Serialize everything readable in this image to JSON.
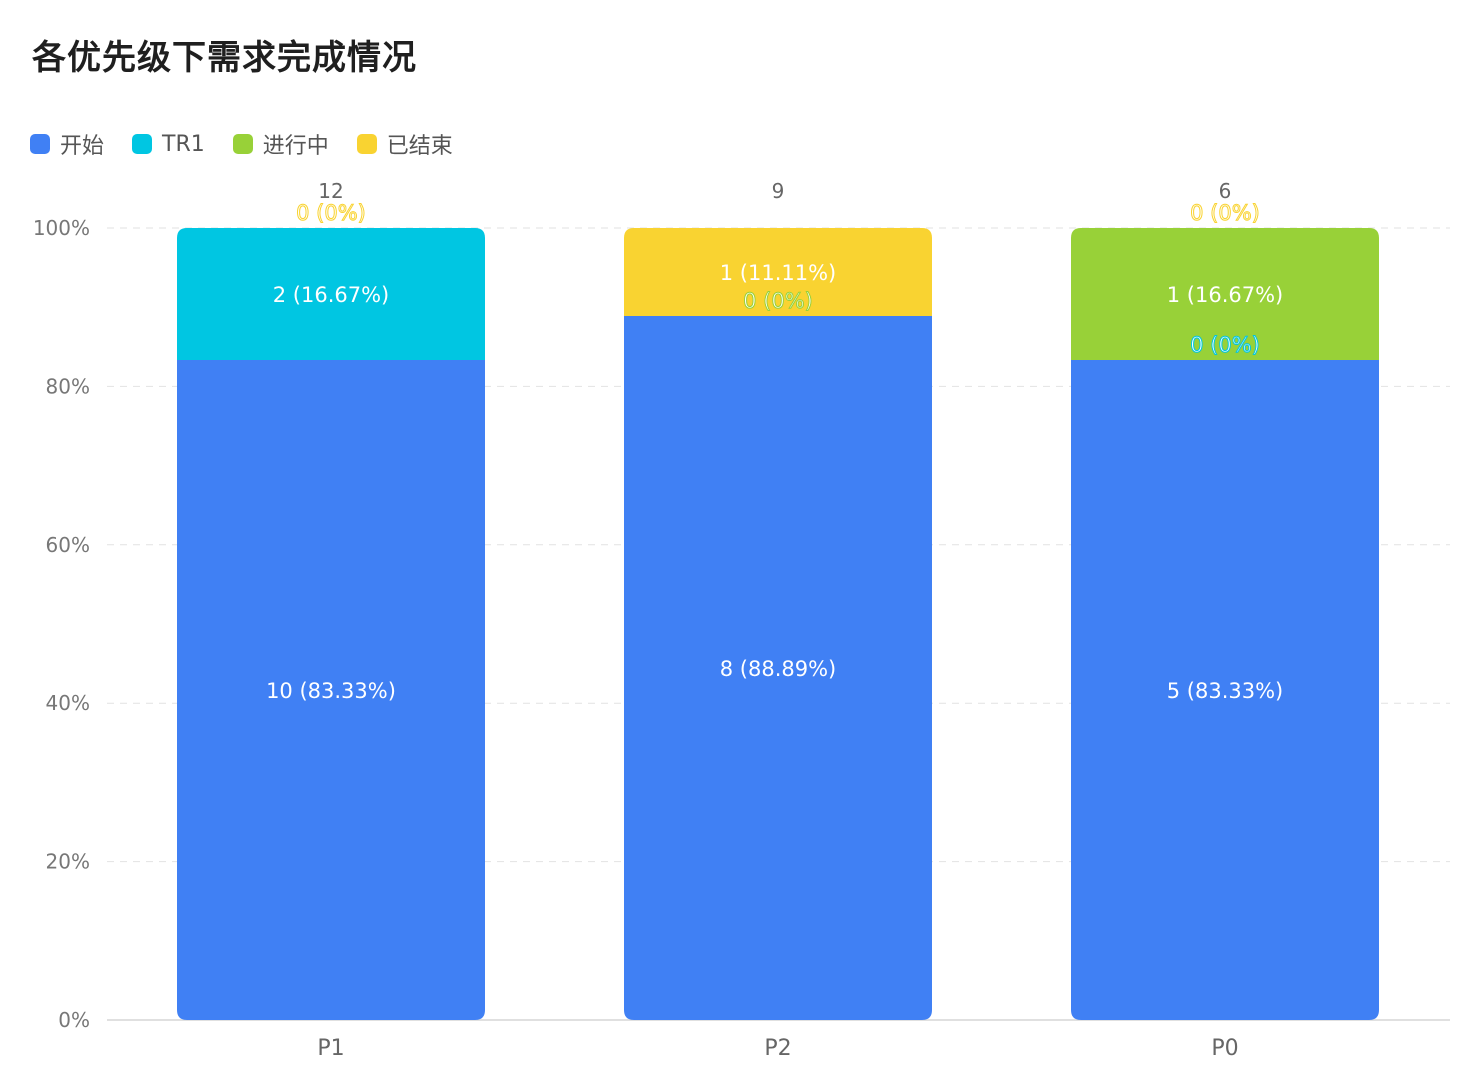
{
  "title": "各优先级下需求完成情况",
  "legend": [
    {
      "label": "开始",
      "color": "#4080F4"
    },
    {
      "label": "TR1",
      "color": "#00C6E2"
    },
    {
      "label": "进行中",
      "color": "#98D138"
    },
    {
      "label": "已结束",
      "color": "#F9D331"
    }
  ],
  "chart_data": {
    "type": "bar",
    "stacked": true,
    "normalized_percent": true,
    "categories": [
      "P1",
      "P2",
      "P0"
    ],
    "totals": [
      "12",
      "9",
      "6"
    ],
    "series": [
      {
        "name": "开始",
        "color": "#4080F4",
        "values": [
          10,
          8,
          5
        ],
        "labels": [
          "10 (83.33%)",
          "8 (88.89%)",
          "5 (83.33%)"
        ]
      },
      {
        "name": "TR1",
        "color": "#00C6E2",
        "values": [
          2,
          0,
          0
        ],
        "labels": [
          "2 (16.67%)",
          "0 (0%)",
          "0 (0%)"
        ]
      },
      {
        "name": "进行中",
        "color": "#98D138",
        "values": [
          0,
          0,
          1
        ],
        "labels": [
          "0 (0%)",
          "0 (0%)",
          "1 (16.67%)"
        ]
      },
      {
        "name": "已结束",
        "color": "#F9D331",
        "values": [
          0,
          1,
          0
        ],
        "labels": [
          "0 (0%)",
          "1 (11.11%)",
          "0 (0%)"
        ]
      }
    ],
    "yticks": [
      "0%",
      "20%",
      "40%",
      "60%",
      "80%",
      "100%"
    ],
    "ylim": [
      0,
      100
    ],
    "grid": true,
    "legend_position": "top-left"
  }
}
